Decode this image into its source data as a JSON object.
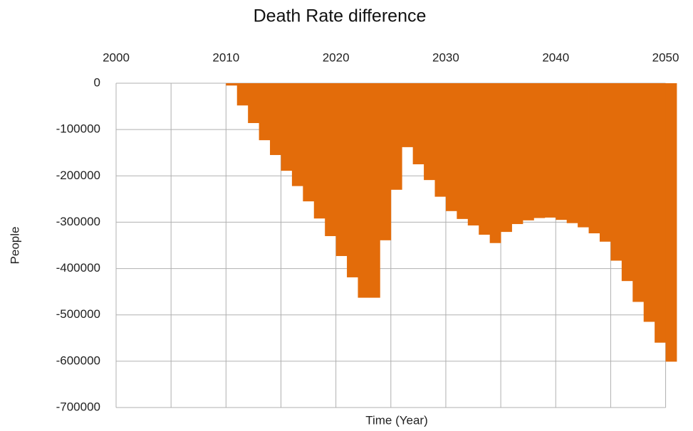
{
  "chart_data": {
    "type": "step-area",
    "title": "Death Rate difference",
    "x_label": "Time (Year)",
    "y_label": "People",
    "x": [
      2010,
      2011,
      2012,
      2013,
      2014,
      2015,
      2016,
      2017,
      2018,
      2019,
      2020,
      2021,
      2022,
      2023,
      2024,
      2025,
      2026,
      2027,
      2028,
      2029,
      2030,
      2031,
      2032,
      2033,
      2034,
      2035,
      2036,
      2037,
      2038,
      2039,
      2040,
      2041,
      2042,
      2043,
      2044,
      2045,
      2046,
      2047,
      2048,
      2049,
      2050
    ],
    "values": [
      -5000,
      -48000,
      -86000,
      -123000,
      -155000,
      -189000,
      -222000,
      -255000,
      -292000,
      -330000,
      -373000,
      -419000,
      -463000,
      -463000,
      -339000,
      -230000,
      -138000,
      -175000,
      -209000,
      -245000,
      -276000,
      -293000,
      -307000,
      -327000,
      -345000,
      -321000,
      -304000,
      -296000,
      -291000,
      -290000,
      -295000,
      -302000,
      -311000,
      -324000,
      -342000,
      -383000,
      -427000,
      -472000,
      -515000,
      -560000,
      -601000
    ],
    "color": "#e36c0a",
    "xlim": [
      2000,
      2051
    ],
    "xticks": [
      2000,
      2010,
      2020,
      2030,
      2040,
      2050
    ],
    "x_minor_grid": [
      2005,
      2015,
      2025,
      2035,
      2045
    ],
    "ylim": [
      -700000,
      0
    ],
    "yticks": [
      0,
      -100000,
      -200000,
      -300000,
      -400000,
      -500000,
      -600000,
      -700000
    ],
    "grid": true,
    "x_axis_position": "top"
  }
}
